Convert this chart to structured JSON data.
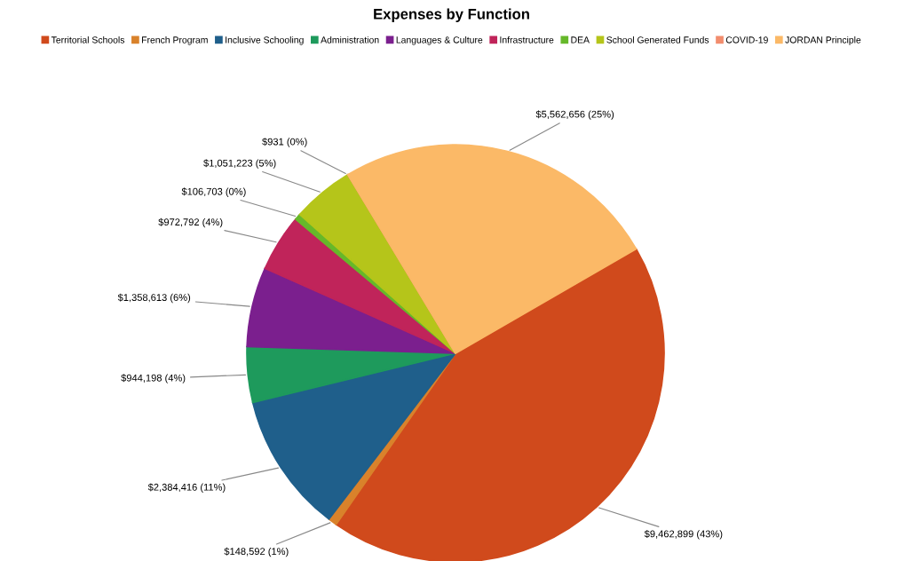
{
  "chart_data": {
    "type": "pie",
    "title": "Expenses by Function",
    "categories": [
      "Territorial Schools",
      "French Program",
      "Inclusive Schooling",
      "Administration",
      "Languages & Culture",
      "Infrastructure",
      "DEA",
      "School Generated Funds",
      "COVID-19",
      "JORDAN Principle"
    ],
    "values": [
      9462899,
      148592,
      2384416,
      944198,
      1358613,
      972792,
      106703,
      1051223,
      931,
      5562656
    ],
    "value_labels": [
      "$9,462,899 (43%)",
      "$148,592 (1%)",
      "$2,384,416 (11%)",
      "$944,198 (4%)",
      "$1,358,613 (6%)",
      "$972,792 (4%)",
      "$106,703 (0%)",
      "$1,051,223 (5%)",
      "$931 (0%)",
      "$5,562,656 (25%)"
    ],
    "colors": [
      "#d04a1c",
      "#d9822b",
      "#1f5f8b",
      "#1e9a5c",
      "#7b1f8e",
      "#c0245a",
      "#66b82a",
      "#b5c51a",
      "#f28d6e",
      "#fbb967"
    ],
    "legend": "top"
  }
}
